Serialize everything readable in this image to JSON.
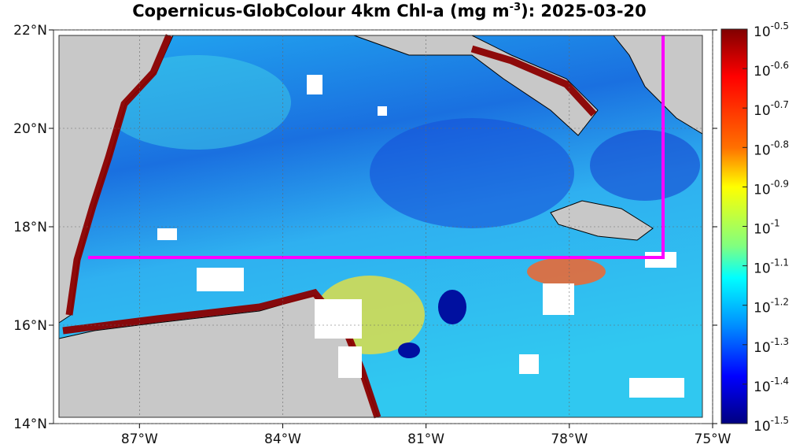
{
  "title": {
    "prefix": "Copernicus-GlobColour 4km Chl-a (mg m",
    "superscript": "-3",
    "suffix": "): 2025-03-20"
  },
  "axes": {
    "lat_ticks": [
      {
        "value": 22,
        "label": "22°N"
      },
      {
        "value": 20,
        "label": "20°N"
      },
      {
        "value": 18,
        "label": "18°N"
      },
      {
        "value": 16,
        "label": "16°N"
      },
      {
        "value": 14,
        "label": "14°N"
      }
    ],
    "lon_ticks": [
      {
        "value": -87,
        "label": "87°W"
      },
      {
        "value": -84,
        "label": "84°W"
      },
      {
        "value": -81,
        "label": "81°W"
      },
      {
        "value": -78,
        "label": "78°W"
      },
      {
        "value": -75,
        "label": "75°W"
      }
    ],
    "lat_range": [
      14,
      22
    ],
    "lon_range": [
      -88.8,
      -75
    ]
  },
  "colorbar": {
    "base": "10",
    "exponents": [
      "-0.5",
      "-0.6",
      "-0.7",
      "-0.8",
      "-0.9",
      "-1",
      "-1.1",
      "-1.2",
      "-1.3",
      "-1.4",
      "-1.5"
    ],
    "colors": [
      "#800000",
      "#ff0000",
      "#ff8000",
      "#ffff00",
      "#80ff80",
      "#00ffff",
      "#0080ff",
      "#0000ff",
      "#000080"
    ]
  },
  "colors": {
    "land": "#c8c8c8",
    "ocean": "#1ea0f0",
    "transect": "#ff00ff",
    "coast_chl": "#8b0000",
    "cloud": "#ffffff"
  }
}
